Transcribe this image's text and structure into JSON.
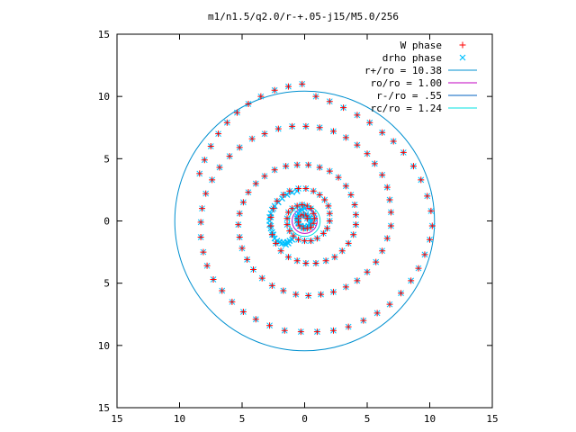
{
  "chart_data": {
    "type": "scatter",
    "title": "m1/n1.5/q2.0/r-+.05-j15/M5.0/256",
    "xlim": [
      -15,
      15
    ],
    "ylim": [
      -15,
      15
    ],
    "xticks": [
      -15,
      -10,
      -5,
      0,
      5,
      10,
      15
    ],
    "yticks": [
      -15,
      -10,
      -5,
      0,
      5,
      10,
      15
    ],
    "xtick_labels": [
      "15",
      "10",
      "5",
      "0",
      "5",
      "10",
      "15"
    ],
    "ytick_labels": [
      "15",
      "10",
      "5",
      "0",
      "5",
      "10",
      "15"
    ],
    "grid": false,
    "legend_position": "top-right",
    "spiral_points": [
      [
        0.9,
        10.0
      ],
      [
        2.0,
        9.6
      ],
      [
        3.1,
        9.1
      ],
      [
        4.2,
        8.5
      ],
      [
        5.2,
        7.9
      ],
      [
        6.2,
        7.1
      ],
      [
        7.1,
        6.4
      ],
      [
        7.9,
        5.5
      ],
      [
        8.7,
        4.4
      ],
      [
        9.3,
        3.3
      ],
      [
        9.8,
        2.0
      ],
      [
        10.1,
        0.8
      ],
      [
        10.2,
        -0.4
      ],
      [
        10.0,
        -1.5
      ],
      [
        9.6,
        -2.7
      ],
      [
        9.1,
        -3.8
      ],
      [
        8.5,
        -4.8
      ],
      [
        7.7,
        -5.8
      ],
      [
        6.8,
        -6.7
      ],
      [
        5.8,
        -7.4
      ],
      [
        4.7,
        -8.0
      ],
      [
        3.5,
        -8.5
      ],
      [
        2.3,
        -8.8
      ],
      [
        1.0,
        -8.9
      ],
      [
        -0.3,
        -8.9
      ],
      [
        -1.6,
        -8.8
      ],
      [
        -2.8,
        -8.4
      ],
      [
        -3.9,
        -7.9
      ],
      [
        -4.9,
        -7.3
      ],
      [
        -5.8,
        -6.5
      ],
      [
        -6.6,
        -5.6
      ],
      [
        -7.3,
        -4.7
      ],
      [
        -7.8,
        -3.6
      ],
      [
        -8.1,
        -2.5
      ],
      [
        -8.3,
        -1.3
      ],
      [
        -8.3,
        -0.1
      ],
      [
        -8.2,
        1.0
      ],
      [
        -7.9,
        2.2
      ],
      [
        -7.4,
        3.3
      ],
      [
        -6.8,
        4.3
      ],
      [
        -6.0,
        5.2
      ],
      [
        -5.2,
        5.9
      ],
      [
        -4.2,
        6.6
      ],
      [
        -3.2,
        7.0
      ],
      [
        -2.1,
        7.4
      ],
      [
        -1.0,
        7.6
      ],
      [
        0.1,
        7.6
      ],
      [
        1.2,
        7.5
      ],
      [
        2.3,
        7.2
      ],
      [
        3.3,
        6.7
      ],
      [
        4.2,
        6.1
      ],
      [
        5.0,
        5.4
      ],
      [
        5.6,
        4.6
      ],
      [
        6.2,
        3.7
      ],
      [
        6.6,
        2.7
      ],
      [
        6.8,
        1.7
      ],
      [
        6.9,
        0.7
      ],
      [
        6.9,
        -0.4
      ],
      [
        6.6,
        -1.4
      ],
      [
        6.2,
        -2.4
      ],
      [
        5.7,
        -3.3
      ],
      [
        5.0,
        -4.1
      ],
      [
        4.2,
        -4.8
      ],
      [
        3.3,
        -5.3
      ],
      [
        2.3,
        -5.7
      ],
      [
        1.3,
        -5.9
      ],
      [
        0.3,
        -6.0
      ],
      [
        -0.7,
        -5.9
      ],
      [
        -1.7,
        -5.6
      ],
      [
        -2.6,
        -5.2
      ],
      [
        -3.4,
        -4.6
      ],
      [
        -4.1,
        -3.9
      ],
      [
        -4.6,
        -3.1
      ],
      [
        -5.0,
        -2.2
      ],
      [
        -5.2,
        -1.3
      ],
      [
        -5.3,
        -0.3
      ],
      [
        -5.2,
        0.6
      ],
      [
        -4.9,
        1.5
      ],
      [
        -4.5,
        2.3
      ],
      [
        -3.9,
        3.0
      ],
      [
        -3.2,
        3.6
      ],
      [
        -2.4,
        4.1
      ],
      [
        -1.5,
        4.4
      ],
      [
        -0.6,
        4.5
      ],
      [
        0.3,
        4.5
      ],
      [
        1.2,
        4.3
      ],
      [
        2.0,
        4.0
      ],
      [
        2.7,
        3.5
      ],
      [
        3.3,
        2.8
      ],
      [
        3.7,
        2.1
      ],
      [
        4.0,
        1.3
      ],
      [
        4.1,
        0.5
      ],
      [
        4.1,
        -0.3
      ],
      [
        3.9,
        -1.1
      ],
      [
        3.5,
        -1.8
      ],
      [
        3.0,
        -2.4
      ],
      [
        2.4,
        -2.9
      ],
      [
        1.7,
        -3.2
      ],
      [
        0.9,
        -3.4
      ],
      [
        0.1,
        -3.4
      ],
      [
        -0.6,
        -3.2
      ],
      [
        -1.3,
        -2.9
      ],
      [
        -1.9,
        -2.4
      ],
      [
        -2.3,
        -1.8
      ],
      [
        -2.6,
        -1.1
      ],
      [
        -2.7,
        -0.4
      ],
      [
        -2.7,
        0.3
      ],
      [
        -2.5,
        1.0
      ],
      [
        -2.2,
        1.6
      ],
      [
        -1.7,
        2.1
      ],
      [
        -1.2,
        2.4
      ],
      [
        -0.5,
        2.6
      ],
      [
        0.1,
        2.6
      ],
      [
        0.7,
        2.4
      ],
      [
        1.2,
        2.1
      ],
      [
        1.6,
        1.7
      ],
      [
        1.9,
        1.2
      ],
      [
        2.0,
        0.6
      ],
      [
        2.0,
        0.0
      ],
      [
        1.8,
        -0.6
      ],
      [
        1.5,
        -1.0
      ],
      [
        1.0,
        -1.4
      ],
      [
        0.5,
        -1.6
      ],
      [
        0.0,
        -1.6
      ],
      [
        -0.5,
        -1.5
      ],
      [
        -0.9,
        -1.2
      ],
      [
        -1.2,
        -0.8
      ],
      [
        -1.4,
        -0.3
      ],
      [
        -1.4,
        0.2
      ],
      [
        -1.3,
        0.7
      ],
      [
        -1.0,
        1.0
      ],
      [
        -0.6,
        1.2
      ],
      [
        -0.2,
        1.3
      ],
      [
        0.2,
        1.2
      ],
      [
        0.5,
        1.0
      ],
      [
        0.7,
        0.6
      ],
      [
        0.8,
        0.2
      ],
      [
        0.7,
        -0.2
      ],
      [
        0.5,
        -0.5
      ],
      [
        0.2,
        -0.6
      ],
      [
        -0.1,
        -0.6
      ],
      [
        -0.4,
        -0.4
      ],
      [
        -0.5,
        -0.1
      ],
      [
        -0.5,
        0.2
      ],
      [
        -0.3,
        0.4
      ],
      [
        -0.1,
        0.5
      ],
      [
        0.1,
        0.4
      ],
      [
        0.2,
        0.2
      ],
      [
        -0.2,
        11.0
      ],
      [
        -1.3,
        10.8
      ],
      [
        -2.4,
        10.5
      ],
      [
        -3.5,
        10.0
      ],
      [
        -4.5,
        9.4
      ],
      [
        -5.4,
        8.7
      ],
      [
        -6.2,
        7.9
      ],
      [
        -6.9,
        7.0
      ],
      [
        -7.5,
        6.0
      ],
      [
        -8.0,
        4.9
      ],
      [
        -8.4,
        3.8
      ]
    ],
    "drho_points": [
      [
        -2.5,
        -1.1
      ],
      [
        -2.4,
        -1.4
      ],
      [
        -2.2,
        -1.6
      ],
      [
        -2.0,
        -1.7
      ],
      [
        -1.8,
        -1.8
      ],
      [
        -1.6,
        -1.8
      ],
      [
        -1.4,
        -1.7
      ],
      [
        -1.2,
        -1.6
      ],
      [
        -1.0,
        -1.5
      ],
      [
        -2.6,
        -0.9
      ],
      [
        -2.7,
        -0.6
      ],
      [
        -2.8,
        -0.3
      ],
      [
        -2.8,
        0.0
      ],
      [
        -2.8,
        0.3
      ],
      [
        -2.7,
        0.6
      ],
      [
        -2.6,
        0.9
      ],
      [
        -2.4,
        1.2
      ],
      [
        -2.1,
        1.5
      ],
      [
        -1.8,
        1.8
      ],
      [
        -1.4,
        2.1
      ],
      [
        -1.0,
        2.3
      ],
      [
        -0.6,
        2.4
      ],
      [
        -0.1,
        1.1
      ],
      [
        0.0,
        1.0
      ],
      [
        -0.2,
        0.9
      ],
      [
        -0.4,
        0.8
      ],
      [
        -0.5,
        0.6
      ],
      [
        -0.6,
        0.4
      ],
      [
        -0.6,
        0.2
      ],
      [
        -0.6,
        0.0
      ],
      [
        -0.5,
        -0.2
      ],
      [
        -0.3,
        -0.4
      ],
      [
        -0.1,
        -0.5
      ],
      [
        0.1,
        -0.5
      ],
      [
        0.3,
        -0.4
      ],
      [
        0.4,
        -0.2
      ],
      [
        0.5,
        0.0
      ],
      [
        0.4,
        0.2
      ],
      [
        0.3,
        0.4
      ],
      [
        0.1,
        0.5
      ],
      [
        -1.5,
        -1.9
      ],
      [
        -1.3,
        -1.8
      ],
      [
        -1.7,
        -1.7
      ]
    ],
    "circle_radii": [
      10.38,
      1.0,
      0.55,
      1.24
    ],
    "series": [
      {
        "name": "W phase",
        "marker": "+",
        "color": "#ff0000"
      },
      {
        "name": "drho phase",
        "marker": "x",
        "color": "#00c0ff"
      },
      {
        "name": "r+/ro = 10.38",
        "color": "#0090d0",
        "line": true
      },
      {
        "name": "ro/ro = 1.00",
        "color": "#c000c0",
        "line": true
      },
      {
        "name": "r-/ro = .55",
        "color": "#0060c0",
        "line": true
      },
      {
        "name": "rc/ro = 1.24",
        "color": "#00e0e0",
        "line": true
      }
    ]
  }
}
